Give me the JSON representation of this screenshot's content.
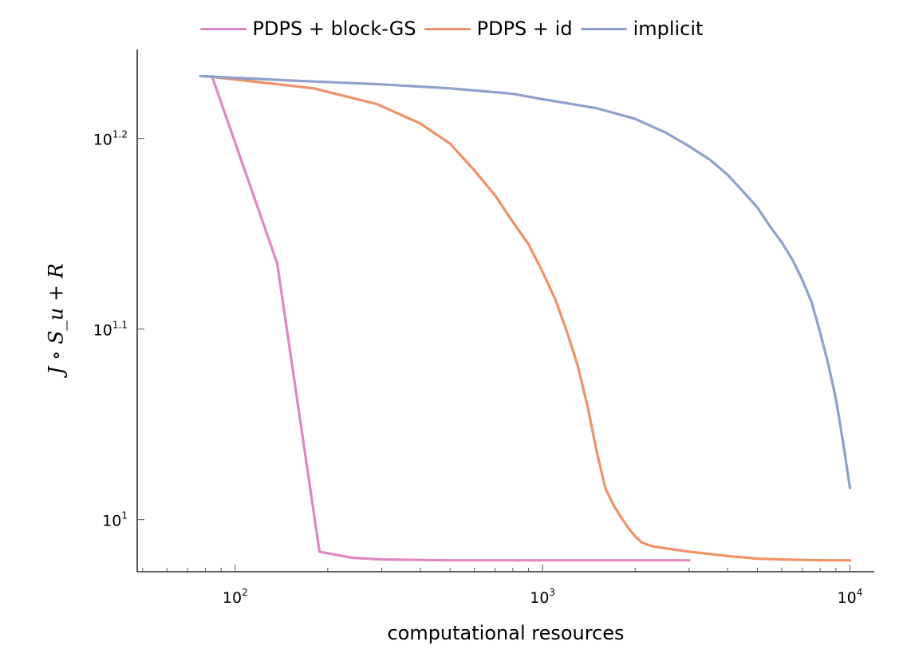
{
  "chart_data": {
    "type": "line",
    "title": "",
    "xlabel": "computational resources",
    "ylabel": "J ∘ S_u + R",
    "x_scale": "log",
    "y_scale": "log",
    "xlim": [
      48,
      12000
    ],
    "ylim": [
      9.39,
      17.65
    ],
    "grid": false,
    "legend_position": "top",
    "x_ticks": [
      {
        "base": "10",
        "exp": "2",
        "value": 100
      },
      {
        "base": "10",
        "exp": "3",
        "value": 1000
      },
      {
        "base": "10",
        "exp": "4",
        "value": 10000
      }
    ],
    "y_ticks": [
      {
        "base": "10",
        "exp": "1",
        "value": 10
      },
      {
        "base": "10",
        "exp": "1.1",
        "value": 12.589
      },
      {
        "base": "10",
        "exp": "1.2",
        "value": 15.849
      }
    ],
    "series": [
      {
        "name": "PDPS + block-GS",
        "color": "#dd88c3",
        "x": [
          84,
          137,
          188,
          240,
          300,
          500,
          1000,
          3000
        ],
        "y": [
          17.09,
          13.63,
          9.62,
          9.55,
          9.53,
          9.52,
          9.52,
          9.52
        ]
      },
      {
        "name": "PDPS + id",
        "color": "#ee9268",
        "x": [
          80,
          180,
          290,
          400,
          500,
          600,
          700,
          800,
          900,
          1000,
          1100,
          1200,
          1300,
          1400,
          1500,
          1600,
          1700,
          1800,
          1900,
          2000,
          2100,
          2200,
          2300,
          2500,
          3000,
          4000,
          5000,
          6000,
          8000,
          10000
        ],
        "y": [
          17.09,
          16.84,
          16.52,
          16.14,
          15.75,
          15.25,
          14.8,
          14.33,
          13.95,
          13.49,
          13.05,
          12.55,
          12.05,
          11.47,
          10.86,
          10.39,
          10.18,
          10.03,
          9.9,
          9.8,
          9.73,
          9.7,
          9.68,
          9.66,
          9.62,
          9.57,
          9.54,
          9.53,
          9.52,
          9.52
        ]
      },
      {
        "name": "implicit",
        "color": "#8fa0cc",
        "x": [
          77,
          150,
          300,
          500,
          800,
          1000,
          1500,
          2000,
          2500,
          3000,
          3500,
          4000,
          4500,
          5000,
          5500,
          6000,
          6500,
          7000,
          7500,
          8000,
          8500,
          9000,
          9500,
          10000
        ],
        "y": [
          17.09,
          17.0,
          16.92,
          16.84,
          16.73,
          16.62,
          16.44,
          16.23,
          15.97,
          15.7,
          15.45,
          15.17,
          14.86,
          14.58,
          14.25,
          13.98,
          13.69,
          13.36,
          13.01,
          12.54,
          12.07,
          11.57,
          10.98,
          10.39
        ]
      }
    ]
  }
}
